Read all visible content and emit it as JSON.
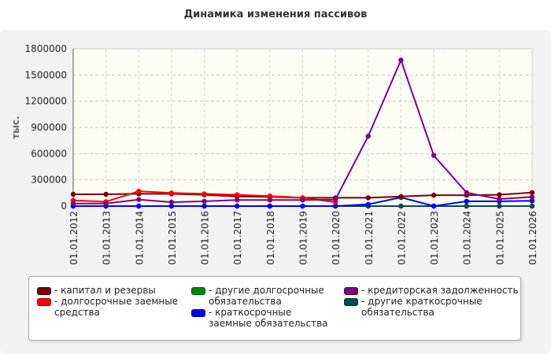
{
  "chart_data": {
    "type": "line",
    "title": "Динамика изменения пассивов",
    "ylabel": "тыс.",
    "xlabel": "",
    "ylim": [
      0,
      1800000
    ],
    "yticks": [
      0,
      300000,
      600000,
      900000,
      1200000,
      1500000,
      1800000
    ],
    "grid": true,
    "legend_position": "bottom",
    "x": [
      "01.01.2012",
      "01.01.2013",
      "01.01.2014",
      "01.01.2015",
      "01.01.2016",
      "01.01.2017",
      "01.01.2018",
      "01.01.2019",
      "01.01.2020",
      "01.01.2021",
      "01.01.2022",
      "01.01.2023",
      "01.01.2024",
      "01.01.2025",
      "01.01.2026"
    ],
    "series": [
      {
        "name": "капитал и резервы",
        "color": "#7a0000",
        "values": [
          135000,
          135000,
          140000,
          140000,
          130000,
          110000,
          105000,
          95000,
          95000,
          95000,
          110000,
          125000,
          125000,
          130000,
          155000
        ]
      },
      {
        "name": "долгосрочные заемные средства",
        "color": "#ff0000",
        "values": [
          65000,
          50000,
          170000,
          150000,
          140000,
          130000,
          115000,
          95000,
          45000,
          null,
          null,
          null,
          null,
          null,
          null
        ]
      },
      {
        "name": "другие долгосрочные обязательства",
        "color": "#008800",
        "values": [
          0,
          0,
          0,
          0,
          0,
          0,
          0,
          0,
          0,
          0,
          0,
          0,
          0,
          0,
          0
        ]
      },
      {
        "name": "краткосрочные заемные обязательства",
        "color": "#0000ee",
        "values": [
          0,
          0,
          0,
          0,
          0,
          0,
          0,
          0,
          0,
          20000,
          100000,
          0,
          55000,
          55000,
          60000
        ]
      },
      {
        "name": "кредиторская задолженность",
        "color": "#800080",
        "values": [
          30000,
          30000,
          75000,
          45000,
          55000,
          70000,
          70000,
          70000,
          75000,
          800000,
          1670000,
          580000,
          155000,
          80000,
          105000
        ]
      },
      {
        "name": "другие краткосрочные обязательства",
        "color": "#004d4d",
        "values": [
          0,
          0,
          0,
          0,
          0,
          0,
          0,
          0,
          0,
          0,
          0,
          0,
          0,
          0,
          0
        ]
      }
    ]
  },
  "legend": [
    {
      "label": "- капитал и резервы",
      "color": "#7a0000"
    },
    {
      "label": "- долгосрочные заемные средства",
      "color": "#ff0000"
    },
    {
      "label": "- другие долгосрочные обязательства",
      "color": "#008800"
    },
    {
      "label": "- краткосрочные заемные обязательства",
      "color": "#0000ee"
    },
    {
      "label": "- кредиторская задолженность",
      "color": "#800080"
    },
    {
      "label": "- другие краткосрочные обязательства",
      "color": "#004d4d"
    }
  ]
}
